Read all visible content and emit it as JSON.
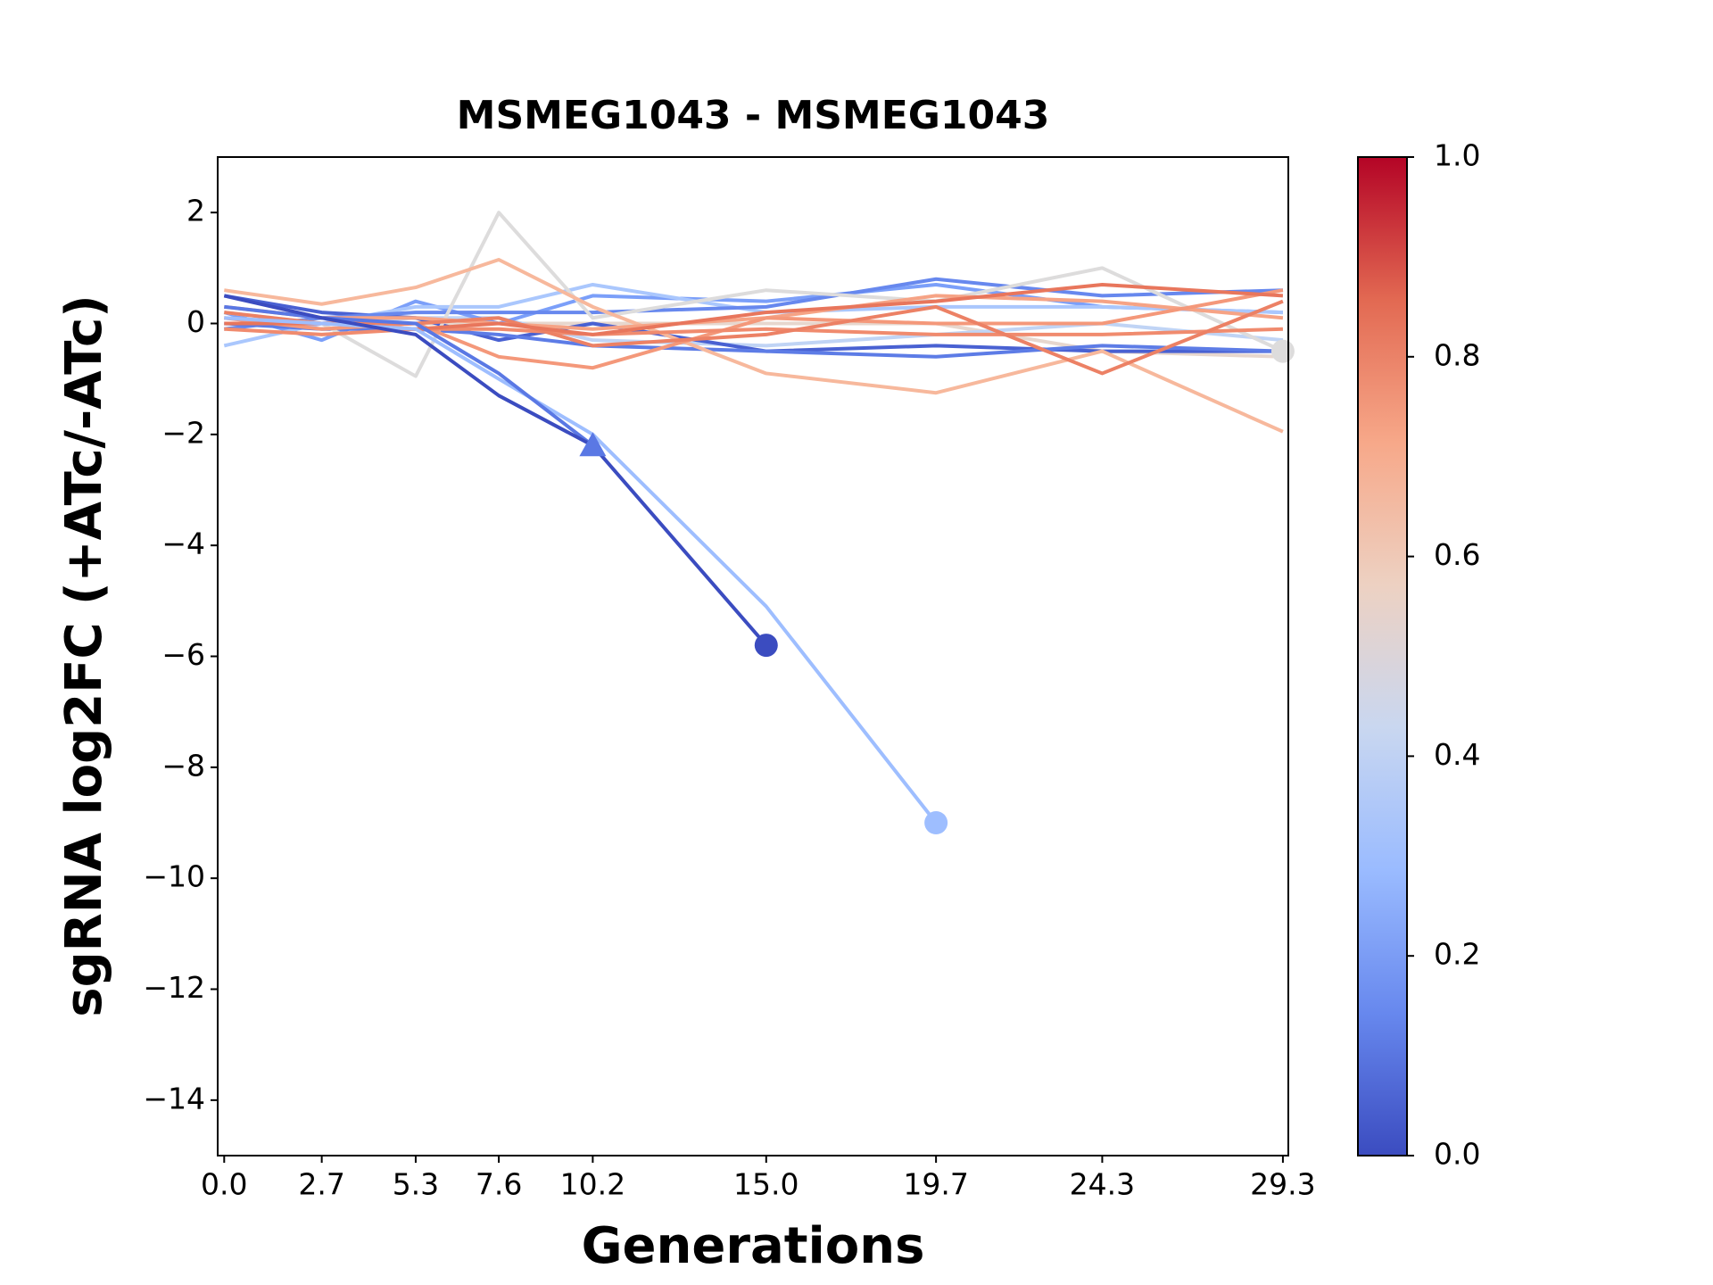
{
  "chart_data": {
    "type": "line",
    "title": "MSMEG1043 - MSMEG1043",
    "xlabel": "Generations",
    "ylabel": "sgRNA log2FC (+ATc/-ATc)",
    "x": [
      0,
      2.7,
      5.3,
      7.6,
      10.2,
      15,
      19.7,
      24.3,
      29.3
    ],
    "xlim": [
      -0.18,
      29.45
    ],
    "xticks": [
      {
        "value": 0,
        "label": "0.0"
      },
      2.7,
      5.3,
      7.6,
      10.2,
      {
        "value": 15,
        "label": "15.0"
      },
      19.7,
      24.3,
      29.3
    ],
    "ylim": [
      -15,
      3
    ],
    "yticks": [
      2,
      0,
      {
        "value": -2,
        "label": "−2"
      },
      {
        "value": -4,
        "label": "−4"
      },
      {
        "value": -6,
        "label": "−6"
      },
      {
        "value": -8,
        "label": "−8"
      },
      {
        "value": -10,
        "label": "−10"
      },
      {
        "value": -12,
        "label": "−12"
      },
      {
        "value": -14,
        "label": "−14"
      }
    ],
    "series": [
      {
        "color": "#e7d7ce",
        "values": [
          0.1,
          0.0,
          0.0,
          0.0,
          0.0,
          0.0,
          0.0,
          -0.5,
          -0.6
        ]
      },
      {
        "color": "#c0d4f5",
        "values": [
          0.0,
          0.0,
          0.1,
          0.1,
          -0.3,
          -0.4,
          -0.2,
          0.0,
          -0.3
        ]
      },
      {
        "color": "#4961d2",
        "values": [
          0.5,
          0.2,
          0.1,
          -0.3,
          0.0,
          -0.5,
          -0.4,
          -0.5,
          -0.5
        ]
      },
      {
        "color": "#7b9ff9",
        "values": [
          0.2,
          -0.3,
          0.4,
          0.0,
          0.5,
          0.4,
          0.7,
          0.3,
          0.2
        ]
      },
      {
        "color": "#aac7fd",
        "values": [
          -0.4,
          0.0,
          0.3,
          0.3,
          0.7,
          0.2,
          0.3,
          0.3,
          0.2
        ]
      },
      {
        "color": "#6788ee",
        "values": [
          -0.1,
          0.1,
          0.2,
          0.2,
          0.2,
          0.3,
          0.8,
          0.5,
          0.6
        ]
      },
      {
        "color": "#5d7ce6",
        "values": [
          0.0,
          -0.1,
          -0.1,
          -0.2,
          -0.4,
          -0.5,
          -0.6,
          -0.4,
          -0.5
        ]
      },
      {
        "color": "#dddcdc",
        "marker": "circle",
        "values": [
          0.2,
          0.0,
          -0.95,
          2.0,
          0.1,
          0.6,
          0.4,
          1.0,
          -0.5
        ]
      },
      {
        "color": "#f7b89c",
        "values": [
          0.6,
          0.35,
          0.65,
          1.15,
          0.3,
          -0.9,
          -1.25,
          -0.5,
          -1.95
        ]
      },
      {
        "color": "#f6a385",
        "values": [
          0.3,
          0.1,
          0.1,
          0.0,
          -0.1,
          0.1,
          0.5,
          0.4,
          0.1
        ]
      },
      {
        "color": "#f4987a",
        "values": [
          0.1,
          -0.1,
          0.0,
          -0.6,
          -0.8,
          0.1,
          0.0,
          0.0,
          0.6
        ]
      },
      {
        "color": "#f08b6e",
        "values": [
          -0.1,
          -0.2,
          -0.1,
          -0.1,
          -0.2,
          -0.1,
          -0.2,
          -0.2,
          -0.1
        ]
      },
      {
        "color": "#ec8165",
        "values": [
          0.2,
          0.0,
          0.0,
          0.1,
          -0.4,
          -0.2,
          0.3,
          -0.9,
          0.4
        ]
      },
      {
        "color": "#e8765c",
        "values": [
          0.0,
          0.0,
          -0.1,
          0.0,
          -0.2,
          0.2,
          0.4,
          0.7,
          0.5
        ]
      },
      {
        "color": "#9ebeff",
        "marker": "circle",
        "values": [
          0.1,
          0.0,
          -0.1,
          -1.0,
          -2.0,
          -5.1,
          -9.0,
          null,
          null
        ]
      },
      {
        "color": "#5a78e4",
        "marker": "triangle",
        "values": [
          0.3,
          0.1,
          0.0,
          -0.9,
          -2.2,
          null,
          null,
          null,
          null
        ]
      },
      {
        "color": "#3b4cc0",
        "marker": "circle",
        "values": [
          0.5,
          0.1,
          -0.2,
          -1.3,
          -2.2,
          -5.8,
          null,
          null,
          null
        ]
      }
    ],
    "colorbar": {
      "lim": [
        0,
        1
      ],
      "ticks": [
        {
          "value": 0,
          "label": "0.0"
        },
        0.2,
        0.4,
        0.6,
        0.8,
        {
          "value": 1,
          "label": "1.0"
        }
      ],
      "colors": [
        "#3b4cc0",
        "#6788ee",
        "#9abbff",
        "#c9d7f0",
        "#edd1c2",
        "#f7a889",
        "#e26952",
        "#b40426"
      ]
    }
  }
}
